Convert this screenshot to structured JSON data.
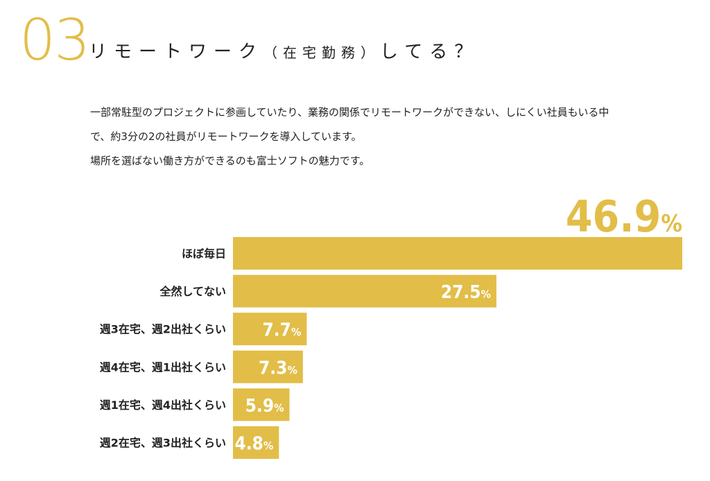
{
  "header": {
    "number": "03",
    "title_main": "リモートワーク",
    "title_paren": "（在宅勤務）",
    "title_tail": "してる？"
  },
  "description": {
    "line1": "一部常駐型のプロジェクトに参画していたり、業務の関係でリモートワークができない、しにくい社員もいる中",
    "line2": "で、約3分の2の社員がリモートワークを導入しています。",
    "line3": "場所を選ばない働き方ができるのも富士ソフトの魅力です。"
  },
  "colors": {
    "accent": "#e2bd48",
    "text": "#222222",
    "value_label": "#ffffff"
  },
  "chart_data": {
    "type": "bar",
    "orientation": "horizontal",
    "categories": [
      "ほぼ毎日",
      "全然してない",
      "週3在宅、週2出社くらい",
      "週4在宅、週1出社くらい",
      "週1在宅、週4出社くらい",
      "週2在宅、週3出社くらい"
    ],
    "values": [
      46.9,
      27.5,
      7.7,
      7.3,
      5.9,
      4.8
    ],
    "value_labels": [
      "46.9",
      "27.5",
      "7.7",
      "7.3",
      "5.9",
      "4.8"
    ],
    "unit": "%",
    "xlim": [
      0,
      46.9
    ],
    "grid": false
  }
}
